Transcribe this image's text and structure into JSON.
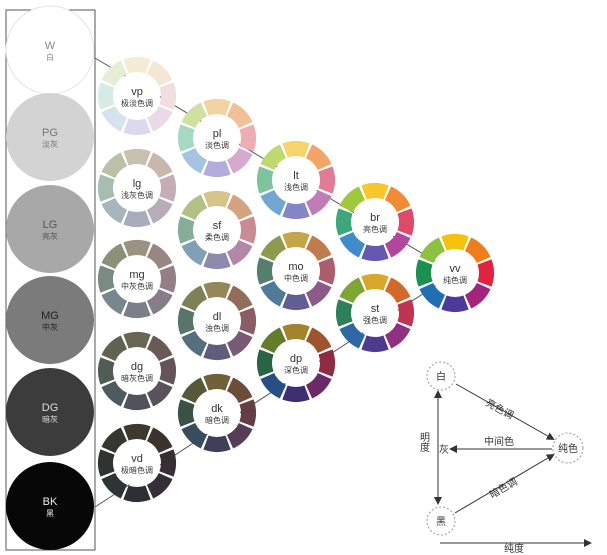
{
  "column": {
    "circles": [
      {
        "code": "W",
        "name": "白",
        "color": "#ffffff",
        "text": "#888888"
      },
      {
        "code": "PG",
        "name": "淡灰",
        "color": "#d3d3d3",
        "text": "#777777"
      },
      {
        "code": "LG",
        "name": "亮灰",
        "color": "#a8a8a8",
        "text": "#555555"
      },
      {
        "code": "MG",
        "name": "中灰",
        "color": "#7b7b7b",
        "text": "#222222"
      },
      {
        "code": "DG",
        "name": "暗灰",
        "color": "#3c3c3c",
        "text": "#dddddd"
      },
      {
        "code": "BK",
        "name": "黑",
        "color": "#070707",
        "text": "#eeeeee"
      }
    ]
  },
  "wheels": [
    {
      "code": "vp",
      "name": "极淡色调",
      "colors": [
        "#f5ecd8",
        "#f5e7d4",
        "#f1dede",
        "#ead9e8",
        "#dcd9ee",
        "#d5e2ef",
        "#d6ece4",
        "#e6efd6"
      ]
    },
    {
      "code": "pl",
      "name": "淡色调",
      "colors": [
        "#f3d3a3",
        "#f0c097",
        "#ecadb5",
        "#d8a9cf",
        "#b3acdc",
        "#a6c4e0",
        "#a5d9c2",
        "#cfe0a2"
      ]
    },
    {
      "code": "lg",
      "name": "浅灰色调",
      "colors": [
        "#c8c1b0",
        "#c9b6ad",
        "#c4adb4",
        "#b8acbb",
        "#a9acbc",
        "#a6b6bc",
        "#a8bdb1",
        "#bcc1a6"
      ]
    },
    {
      "code": "lt",
      "name": "浅色调",
      "colors": [
        "#f7d36c",
        "#f2a566",
        "#e27b95",
        "#c07cb7",
        "#8486c8",
        "#74a6d2",
        "#7ec39e",
        "#bed96f"
      ]
    },
    {
      "code": "sf",
      "name": "柔色调",
      "colors": [
        "#d6c48a",
        "#d4a482",
        "#c98c94",
        "#b387a8",
        "#8d8aae",
        "#81a0b5",
        "#86ad97",
        "#b3c086"
      ]
    },
    {
      "code": "br",
      "name": "亮色调",
      "colors": [
        "#f7c72b",
        "#f08a34",
        "#dd4a6a",
        "#b0479d",
        "#6658b0",
        "#3e8cc9",
        "#3da77a",
        "#a0c83b"
      ]
    },
    {
      "code": "mg",
      "name": "中灰色调",
      "colors": [
        "#9a9282",
        "#9a8680",
        "#937f85",
        "#877c89",
        "#7b7e8b",
        "#78878c",
        "#7a8b81",
        "#8c9079"
      ]
    },
    {
      "code": "mo",
      "name": "中色调",
      "colors": [
        "#c4a64a",
        "#bf7c4e",
        "#ad5e6c",
        "#8c5a86",
        "#615c92",
        "#4f7b98",
        "#547f6e",
        "#8c9c4c"
      ]
    },
    {
      "code": "vv",
      "name": "纯色调",
      "colors": [
        "#f4c20d",
        "#ee7d1c",
        "#e0243f",
        "#a3237f",
        "#4c3a98",
        "#1f6eb6",
        "#1a9150",
        "#8cc23f"
      ]
    },
    {
      "code": "dl",
      "name": "浊色调",
      "colors": [
        "#958659",
        "#936c5a",
        "#8a5d66",
        "#775a76",
        "#5e5d7c",
        "#566f7e",
        "#5a7468",
        "#7d8156"
      ]
    },
    {
      "code": "st",
      "name": "强色调",
      "colors": [
        "#d9a72a",
        "#d4682c",
        "#c03450",
        "#8e317e",
        "#4f3b8e",
        "#2e67a3",
        "#2e805a",
        "#7ea634"
      ]
    },
    {
      "code": "dg",
      "name": "暗灰色调",
      "colors": [
        "#6a6455",
        "#6a5a55",
        "#635459",
        "#5a525d",
        "#50535d",
        "#4e5b5e",
        "#505d55",
        "#5f624f"
      ]
    },
    {
      "code": "dp",
      "name": "深色调",
      "colors": [
        "#a3832b",
        "#9f5430",
        "#8e2c45",
        "#6b2a67",
        "#3e2f73",
        "#284f83",
        "#296545",
        "#617d2c"
      ]
    },
    {
      "code": "dk",
      "name": "暗色调",
      "colors": [
        "#6f6238",
        "#6c4c3a",
        "#643e47",
        "#553d58",
        "#3f3f5c",
        "#384d5b",
        "#3a5147",
        "#55593a"
      ]
    },
    {
      "code": "vd",
      "name": "极暗色调",
      "colors": [
        "#3d392e",
        "#3c332f",
        "#382f33",
        "#332e37",
        "#2d2f37",
        "#2c3438",
        "#2c3530",
        "#35372c"
      ]
    }
  ],
  "legend": {
    "white": "白",
    "gray": "灰",
    "black": "黑",
    "pure": "纯色",
    "bright_tone": "亮色调",
    "middle_color": "中间色",
    "dark_tone": "暗色调",
    "lightness": "明度",
    "chroma": "纯度"
  }
}
